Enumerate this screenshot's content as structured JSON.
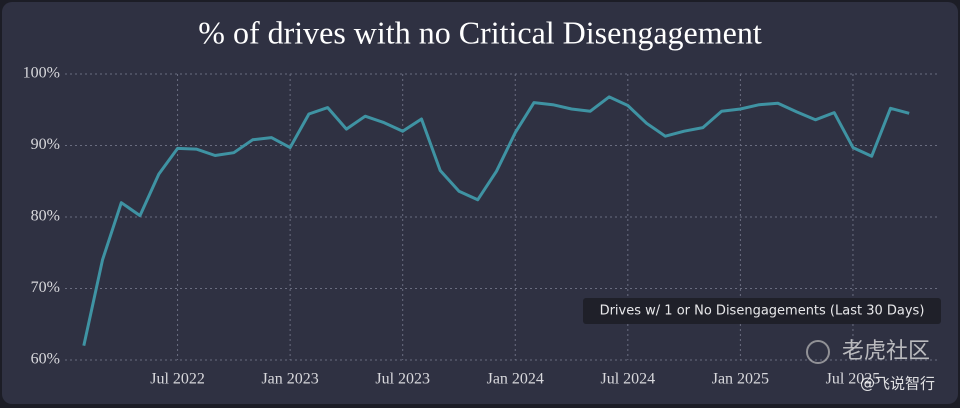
{
  "chart_data": {
    "type": "line",
    "title": "% of drives with no Critical Disengagement",
    "x": [
      "2022-02",
      "2022-03",
      "2022-04",
      "2022-05",
      "2022-06",
      "2022-07",
      "2022-08",
      "2022-09",
      "2022-10",
      "2022-11",
      "2022-12",
      "2023-01",
      "2023-02",
      "2023-03",
      "2023-04",
      "2023-05",
      "2023-06",
      "2023-07",
      "2023-08",
      "2023-09",
      "2023-10",
      "2023-11",
      "2023-12",
      "2024-01",
      "2024-02",
      "2024-03",
      "2024-04",
      "2024-05",
      "2024-06",
      "2024-07",
      "2024-08",
      "2024-09",
      "2024-10",
      "2024-11",
      "2024-12",
      "2025-01",
      "2025-02",
      "2025-03",
      "2025-04",
      "2025-05",
      "2025-06",
      "2025-07",
      "2025-08",
      "2025-09",
      "2025-10"
    ],
    "series": [
      {
        "name": "Drives w/ 1 or No Disengagements (Last 30 Days)",
        "color": "#3f93a3",
        "values": [
          62,
          74,
          82,
          80.2,
          86,
          89.6,
          89.5,
          88.6,
          89,
          90.8,
          91.1,
          89.7,
          94.4,
          95.3,
          92.3,
          94.1,
          93.2,
          92,
          93.7,
          86.5,
          83.6,
          82.4,
          86.4,
          91.8,
          96,
          95.7,
          95.1,
          94.8,
          96.8,
          95.6,
          93.1,
          91.3,
          92,
          92.5,
          94.8,
          95.1,
          95.7,
          95.9,
          94.7,
          93.6,
          94.6,
          89.7,
          88.5,
          95.2,
          94.5
        ]
      }
    ],
    "xlim": [
      "2022-01",
      "2025-11"
    ],
    "xticks": [
      {
        "value": "2022-07",
        "label": "Jul 2022"
      },
      {
        "value": "2023-01",
        "label": "Jan 2023"
      },
      {
        "value": "2023-07",
        "label": "Jul 2023"
      },
      {
        "value": "2024-01",
        "label": "Jan 2024"
      },
      {
        "value": "2024-07",
        "label": "Jul 2024"
      },
      {
        "value": "2025-01",
        "label": "Jan 2025"
      },
      {
        "value": "2025-07",
        "label": "Jul 2025"
      }
    ],
    "ylim": [
      60,
      100
    ],
    "yticks": [
      {
        "value": 60,
        "label": "60%"
      },
      {
        "value": 70,
        "label": "70%"
      },
      {
        "value": 80,
        "label": "80%"
      },
      {
        "value": 90,
        "label": "90%"
      },
      {
        "value": 100,
        "label": "100%"
      }
    ],
    "grid": true
  },
  "watermark": {
    "brand": "老虎社区",
    "handle": "@飞说智行"
  }
}
